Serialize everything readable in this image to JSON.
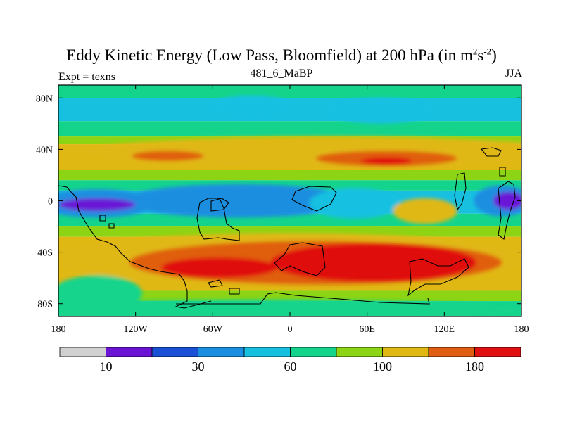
{
  "chart_data": {
    "type": "heatmap",
    "title": "Eddy Kinetic Energy (Low Pass, Bloomfield) at 200 hPa (in m",
    "title_unit_sup1": "2",
    "title_unit_s": "s",
    "title_unit_sup2": "-2",
    "title_close": ")",
    "left_label": "Expt = texns",
    "center_label": "481_6_MaBP",
    "right_label": "JJA",
    "x_ticks": [
      {
        "lon": -180,
        "label": "180"
      },
      {
        "lon": -120,
        "label": "120W"
      },
      {
        "lon": -60,
        "label": "60W"
      },
      {
        "lon": 0,
        "label": "0"
      },
      {
        "lon": 60,
        "label": "60E"
      },
      {
        "lon": 120,
        "label": "120E"
      },
      {
        "lon": 180,
        "label": "180"
      }
    ],
    "y_ticks": [
      {
        "lat": 80,
        "label": "80N"
      },
      {
        "lat": 40,
        "label": "40N"
      },
      {
        "lat": 0,
        "label": "0"
      },
      {
        "lat": -40,
        "label": "40S"
      },
      {
        "lat": -80,
        "label": "80S"
      }
    ],
    "xlim": [
      -180,
      180
    ],
    "ylim": [
      -90,
      90
    ],
    "colorbar": {
      "levels": [
        10,
        20,
        30,
        45,
        60,
        80,
        100,
        140,
        180
      ],
      "colors": [
        "#d0d0d0",
        "#6a14d6",
        "#1a50d6",
        "#1a8ee0",
        "#18c0e0",
        "#14d48c",
        "#8cd414",
        "#e0b814",
        "#e05e10",
        "#e01010"
      ],
      "labels": [
        {
          "index": 1,
          "text": "10"
        },
        {
          "index": 3,
          "text": "30"
        },
        {
          "index": 5,
          "text": "60"
        },
        {
          "index": 7,
          "text": "100"
        },
        {
          "index": 9,
          "text": "180"
        }
      ]
    },
    "field_blobs": [
      {
        "name": "north-mid-band",
        "level": 7,
        "lon": 30,
        "lat": 38,
        "rlon": 190,
        "rlat": 12
      },
      {
        "name": "north-pacific-jet",
        "level": 8,
        "lon": -95,
        "lat": 35,
        "rlon": 28,
        "rlat": 4
      },
      {
        "name": "north-asia-jet",
        "level": 8,
        "lon": 75,
        "lat": 33,
        "rlon": 55,
        "rlat": 6
      },
      {
        "name": "north-asia-core",
        "level": 9,
        "lon": 75,
        "lat": 31,
        "rlon": 20,
        "rlat": 3
      },
      {
        "name": "north-cyan-patch",
        "level": 4,
        "lon": 70,
        "lat": 70,
        "rlon": 40,
        "rlat": 10
      },
      {
        "name": "north-cyan-patch-2",
        "level": 4,
        "lon": -30,
        "lat": 74,
        "rlon": 30,
        "rlat": 8
      },
      {
        "name": "eq-blue-band",
        "level": 3,
        "lon": -40,
        "lat": 0,
        "rlon": 90,
        "rlat": 13
      },
      {
        "name": "eq-blue-west",
        "level": 3,
        "lon": -150,
        "lat": -2,
        "rlon": 45,
        "rlat": 11
      },
      {
        "name": "eq-purple-west",
        "level": 1,
        "lon": -150,
        "lat": -3,
        "rlon": 30,
        "rlat": 5
      },
      {
        "name": "eq-cyan-east",
        "level": 4,
        "lon": 50,
        "lat": -2,
        "rlon": 35,
        "rlat": 12
      },
      {
        "name": "eq-yellow-pacific",
        "level": 7,
        "lon": 105,
        "lat": -8,
        "rlon": 25,
        "rlat": 10
      },
      {
        "name": "eq-blue-east",
        "level": 3,
        "lon": 165,
        "lat": 0,
        "rlon": 22,
        "rlat": 12
      },
      {
        "name": "eq-purple-east",
        "level": 1,
        "lon": 170,
        "lat": 0,
        "rlon": 12,
        "rlat": 7
      },
      {
        "name": "south-yellow-belt",
        "level": 7,
        "lon": 0,
        "lat": -45,
        "rlon": 190,
        "rlat": 20
      },
      {
        "name": "south-orange-belt",
        "level": 8,
        "lon": 20,
        "lat": -48,
        "rlon": 145,
        "rlat": 17
      },
      {
        "name": "south-red-east",
        "level": 9,
        "lon": 65,
        "lat": -48,
        "rlon": 80,
        "rlat": 15
      },
      {
        "name": "south-red-west",
        "level": 9,
        "lon": -55,
        "lat": -52,
        "rlon": 45,
        "rlat": 8
      },
      {
        "name": "sw-green",
        "level": 5,
        "lon": -150,
        "lat": -72,
        "rlon": 35,
        "rlat": 14
      },
      {
        "name": "antarctic-green",
        "level": 5,
        "lon": -20,
        "lat": -85,
        "rlon": 200,
        "rlat": 8
      }
    ]
  }
}
